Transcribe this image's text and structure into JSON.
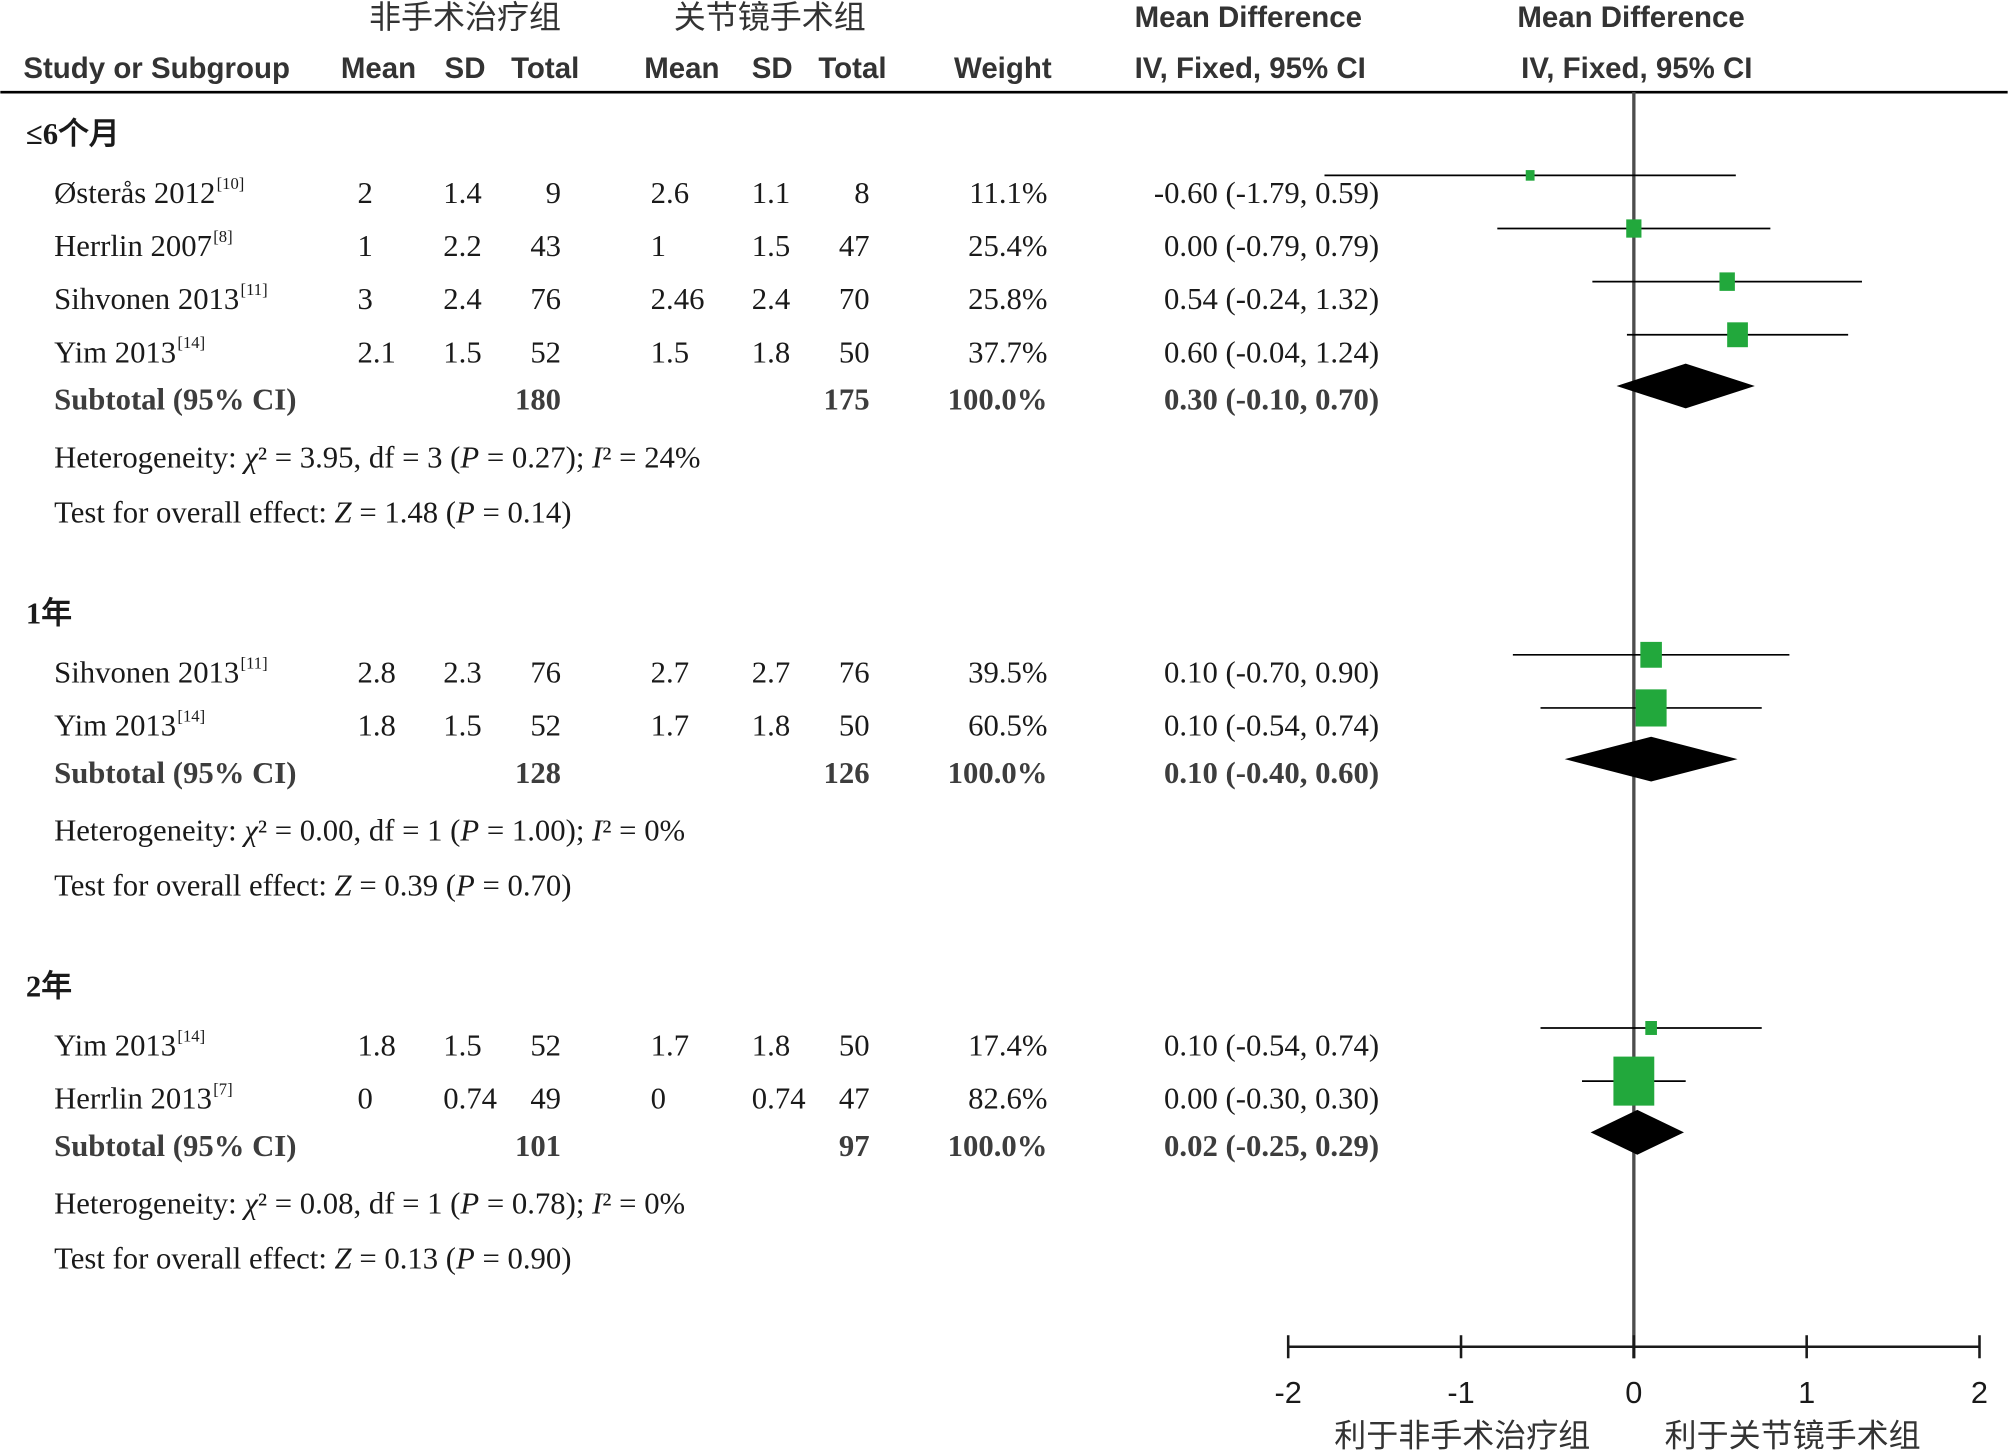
{
  "chart_data": {
    "type": "scatter",
    "columns": {
      "group1": "非手术治疗组",
      "group2": "关节镜手术组",
      "effect_title": "Mean Difference",
      "effect_method": "IV, Fixed, 95% CI",
      "plot_title": "Mean Difference",
      "plot_method": "IV, Fixed, 95% CI",
      "study": "Study or Subgroup",
      "mean1": "Mean",
      "sd1": "SD",
      "total1": "Total",
      "mean2": "Mean",
      "sd2": "SD",
      "total2": "Total",
      "weight": "Weight"
    },
    "xlim": [
      -2,
      2
    ],
    "xticks": [
      -2,
      -1,
      0,
      1,
      2
    ],
    "favours_left": "利于非手术治疗组",
    "favours_right": "利于关节镜手术组",
    "colors": {
      "marker": "#22a83c",
      "diamond": "#000000"
    },
    "subgroups": [
      {
        "label": "≤6个月",
        "studies": [
          {
            "name": "Østerås 2012",
            "ref": "[10]",
            "mean1": "2",
            "sd1": "1.4",
            "total1": "9",
            "mean2": "2.6",
            "sd2": "1.1",
            "total2": "8",
            "weight": "11.1%",
            "ci_text": "-0.60 (-1.79, 0.59)",
            "md": -0.6,
            "lower": -1.79,
            "upper": 0.59
          },
          {
            "name": "Herrlin 2007",
            "ref": "[8]",
            "mean1": "1",
            "sd1": "2.2",
            "total1": "43",
            "mean2": "1",
            "sd2": "1.5",
            "total2": "47",
            "weight": "25.4%",
            "ci_text": "0.00 (-0.79, 0.79)",
            "md": 0.0,
            "lower": -0.79,
            "upper": 0.79
          },
          {
            "name": "Sihvonen 2013",
            "ref": "[11]",
            "mean1": "3",
            "sd1": "2.4",
            "total1": "76",
            "mean2": "2.46",
            "sd2": "2.4",
            "total2": "70",
            "weight": "25.8%",
            "ci_text": "0.54 (-0.24, 1.32)",
            "md": 0.54,
            "lower": -0.24,
            "upper": 1.32
          },
          {
            "name": "Yim 2013",
            "ref": "[14]",
            "mean1": "2.1",
            "sd1": "1.5",
            "total1": "52",
            "mean2": "1.5",
            "sd2": "1.8",
            "total2": "50",
            "weight": "37.7%",
            "ci_text": "0.60 (-0.04, 1.24)",
            "md": 0.6,
            "lower": -0.04,
            "upper": 1.24
          }
        ],
        "subtotal": {
          "label": "Subtotal (95% CI)",
          "total1": "180",
          "total2": "175",
          "weight": "100.0%",
          "ci_text": "0.30 (-0.10, 0.70)",
          "md": 0.3,
          "lower": -0.1,
          "upper": 0.7
        },
        "heterogeneity": "Heterogeneity: χ² = 3.95, df = 3 (P = 0.27); I² = 24%",
        "overall_effect": "Test for overall effect: Z = 1.48 (P = 0.14)"
      },
      {
        "label": "1年",
        "studies": [
          {
            "name": "Sihvonen 2013",
            "ref": "[11]",
            "mean1": "2.8",
            "sd1": "2.3",
            "total1": "76",
            "mean2": "2.7",
            "sd2": "2.7",
            "total2": "76",
            "weight": "39.5%",
            "ci_text": "0.10 (-0.70, 0.90)",
            "md": 0.1,
            "lower": -0.7,
            "upper": 0.9
          },
          {
            "name": "Yim 2013",
            "ref": "[14]",
            "mean1": "1.8",
            "sd1": "1.5",
            "total1": "52",
            "mean2": "1.7",
            "sd2": "1.8",
            "total2": "50",
            "weight": "60.5%",
            "ci_text": "0.10 (-0.54, 0.74)",
            "md": 0.1,
            "lower": -0.54,
            "upper": 0.74
          }
        ],
        "subtotal": {
          "label": "Subtotal (95% CI)",
          "total1": "128",
          "total2": "126",
          "weight": "100.0%",
          "ci_text": "0.10 (-0.40, 0.60)",
          "md": 0.1,
          "lower": -0.4,
          "upper": 0.6
        },
        "heterogeneity": "Heterogeneity: χ² = 0.00, df = 1 (P = 1.00); I² = 0%",
        "overall_effect": "Test for overall effect: Z = 0.39 (P = 0.70)"
      },
      {
        "label": "2年",
        "studies": [
          {
            "name": "Yim 2013",
            "ref": "[14]",
            "mean1": "1.8",
            "sd1": "1.5",
            "total1": "52",
            "mean2": "1.7",
            "sd2": "1.8",
            "total2": "50",
            "weight": "17.4%",
            "ci_text": "0.10 (-0.54, 0.74)",
            "md": 0.1,
            "lower": -0.54,
            "upper": 0.74
          },
          {
            "name": "Herrlin 2013",
            "ref": "[7]",
            "mean1": "0",
            "sd1": "0.74",
            "total1": "49",
            "mean2": "0",
            "sd2": "0.74",
            "total2": "47",
            "weight": "82.6%",
            "ci_text": "0.00 (-0.30, 0.30)",
            "md": 0.0,
            "lower": -0.3,
            "upper": 0.3
          }
        ],
        "subtotal": {
          "label": "Subtotal (95% CI)",
          "total1": "101",
          "total2": "97",
          "weight": "100.0%",
          "ci_text": "0.02 (-0.25, 0.29)",
          "md": 0.02,
          "lower": -0.25,
          "upper": 0.29
        },
        "heterogeneity": "Heterogeneity: χ² = 0.08, df = 1 (P = 0.78); I² = 0%",
        "overall_effect": "Test for overall effect: Z = 0.13 (P = 0.90)"
      }
    ]
  }
}
